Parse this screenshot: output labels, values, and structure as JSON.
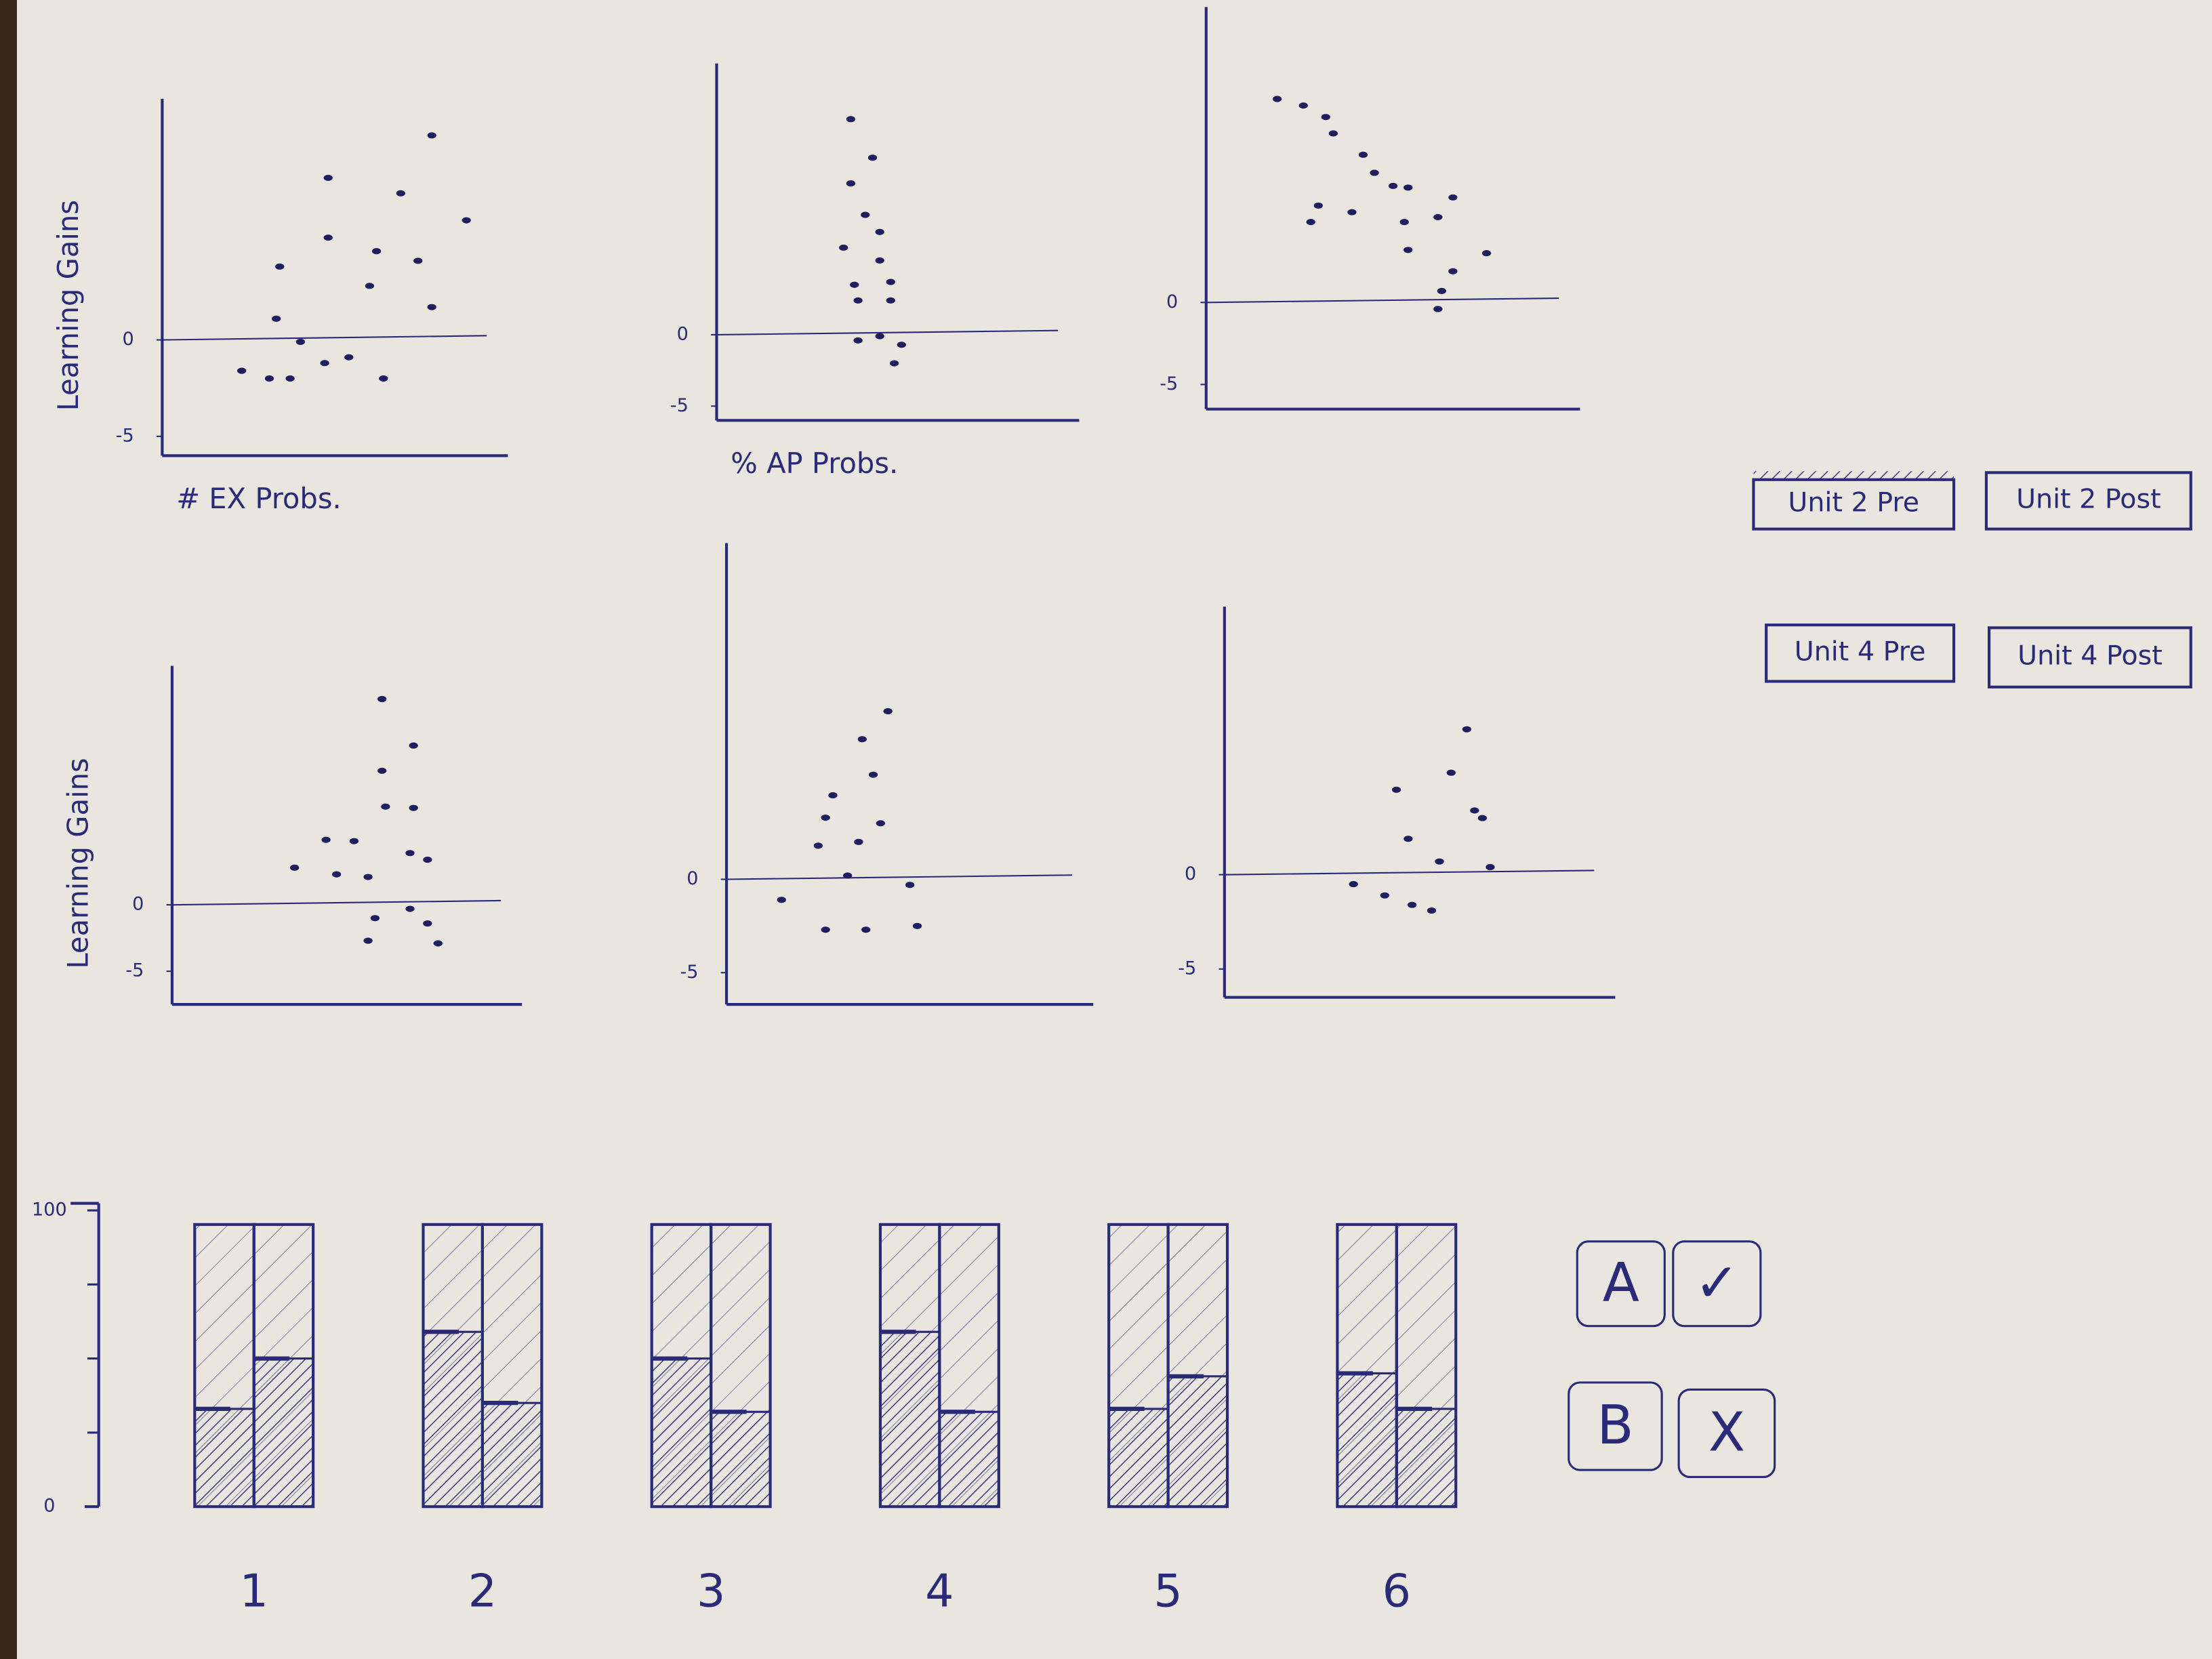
{
  "chart_data": [
    {
      "type": "scatter",
      "y_label": "Learning Gains",
      "x_label": "# EX Probs.",
      "color": "#1f1e5e",
      "xlim": [
        0,
        10
      ],
      "ylim": [
        -6,
        12.5
      ],
      "yticks": [
        -5,
        0
      ],
      "reference_line": 0,
      "x": [
        7.8,
        4.8,
        6.9,
        4.8,
        8.8,
        3.4,
        6.2,
        6.0,
        7.4,
        7.8,
        3.3,
        4.0,
        4.7,
        5.4,
        2.3,
        3.1,
        3.7,
        6.4
      ],
      "y": [
        10.6,
        8.4,
        7.6,
        5.3,
        6.2,
        3.8,
        4.6,
        2.8,
        4.1,
        1.7,
        1.1,
        -0.1,
        -1.2,
        -0.9,
        -1.6,
        -2.0,
        -2.0,
        -2.0
      ]
    },
    {
      "type": "scatter",
      "x_label": "% AP Probs.",
      "color": "#1f1e5e",
      "xlim": [
        0,
        10
      ],
      "ylim": [
        -6,
        19
      ],
      "yticks": [
        -5,
        0
      ],
      "reference_line": 0,
      "x": [
        3.7,
        4.3,
        3.7,
        4.1,
        4.5,
        3.5,
        4.5,
        3.8,
        4.8,
        3.9,
        4.8,
        3.9,
        4.5,
        5.1,
        4.9
      ],
      "y": [
        15.1,
        12.4,
        10.6,
        8.4,
        7.2,
        6.1,
        5.2,
        3.5,
        3.7,
        2.4,
        2.4,
        -0.4,
        -0.1,
        -0.7,
        -2.0
      ]
    },
    {
      "type": "scatter",
      "color": "#1f1e5e",
      "xlim": [
        0,
        10
      ],
      "ylim": [
        -6.5,
        18
      ],
      "yticks": [
        -5,
        0
      ],
      "reference_line": 0,
      "x": [
        1.9,
        2.6,
        3.2,
        3.4,
        4.2,
        4.5,
        5.0,
        5.4,
        6.6,
        3.0,
        3.9,
        2.8,
        5.3,
        6.2,
        5.4,
        7.5,
        6.6,
        6.3,
        6.2
      ],
      "y": [
        12.4,
        12.0,
        11.3,
        10.3,
        9.0,
        7.9,
        7.1,
        7.0,
        6.4,
        5.9,
        5.5,
        4.9,
        4.9,
        5.2,
        3.2,
        3.0,
        1.9,
        0.7,
        -0.4
      ]
    },
    {
      "type": "scatter",
      "y_label": "Learning Gains",
      "color": "#1f1e5e",
      "xlim": [
        0,
        10
      ],
      "ylim": [
        -7.5,
        18
      ],
      "yticks": [
        -5,
        0
      ],
      "reference_line": 0,
      "x": [
        6.0,
        6.9,
        6.0,
        6.1,
        6.9,
        4.4,
        5.2,
        3.5,
        4.7,
        5.6,
        6.8,
        7.3,
        6.8,
        5.8,
        7.3,
        7.6,
        5.6
      ],
      "y": [
        15.5,
        12.0,
        10.1,
        7.4,
        7.3,
        4.9,
        4.8,
        2.8,
        2.3,
        2.1,
        3.9,
        3.4,
        -0.3,
        -1.0,
        -1.4,
        -2.9,
        -2.7
      ]
    },
    {
      "type": "scatter",
      "color": "#1f1e5e",
      "xlim": [
        0,
        10
      ],
      "ylim": [
        -6.7,
        18
      ],
      "yticks": [
        -5,
        0
      ],
      "reference_line": 0,
      "x": [
        4.4,
        3.7,
        4.0,
        2.9,
        2.7,
        4.2,
        3.6,
        2.5,
        3.3,
        5.0,
        1.5,
        2.7,
        3.8,
        5.2
      ],
      "y": [
        9.0,
        7.5,
        5.6,
        4.5,
        3.3,
        3.0,
        2.0,
        1.8,
        0.2,
        -0.3,
        -1.1,
        -2.7,
        -2.7,
        -2.5
      ]
    },
    {
      "type": "scatter",
      "color": "#1f1e5e",
      "xlim": [
        0,
        10
      ],
      "ylim": [
        -6.5,
        14.2
      ],
      "yticks": [
        -5,
        0
      ],
      "reference_line": 0,
      "x": [
        6.2,
        5.8,
        4.4,
        6.4,
        6.6,
        4.7,
        5.5,
        6.8,
        3.3,
        4.1,
        4.8,
        5.3
      ],
      "y": [
        7.7,
        5.4,
        4.5,
        3.4,
        3.0,
        1.9,
        0.7,
        0.4,
        -0.5,
        -1.1,
        -1.6,
        -1.9
      ]
    },
    {
      "type": "bar",
      "categories": [
        "1",
        "2",
        "3",
        "4",
        "5",
        "6"
      ],
      "ylim": [
        0,
        100
      ],
      "yticks": [
        0,
        100
      ],
      "minor_yticks": [
        25,
        50,
        75
      ],
      "series": [
        {
          "color": "#2b2a78",
          "values": [
            33,
            59,
            50,
            59,
            33,
            45
          ]
        },
        {
          "color": "#2b2a78",
          "values": [
            50,
            35,
            32,
            32,
            44,
            33
          ]
        }
      ]
    }
  ],
  "toggles": [
    {
      "label": "Unit 2 Pre",
      "selected": true
    },
    {
      "label": "Unit 2 Post",
      "selected": false
    },
    {
      "label": "Unit 4 Pre",
      "selected": false
    },
    {
      "label": "Unit 4 Post",
      "selected": false
    }
  ],
  "controls": [
    {
      "label": "A"
    },
    {
      "label": "✓"
    },
    {
      "label": "B"
    },
    {
      "label": "X"
    }
  ]
}
